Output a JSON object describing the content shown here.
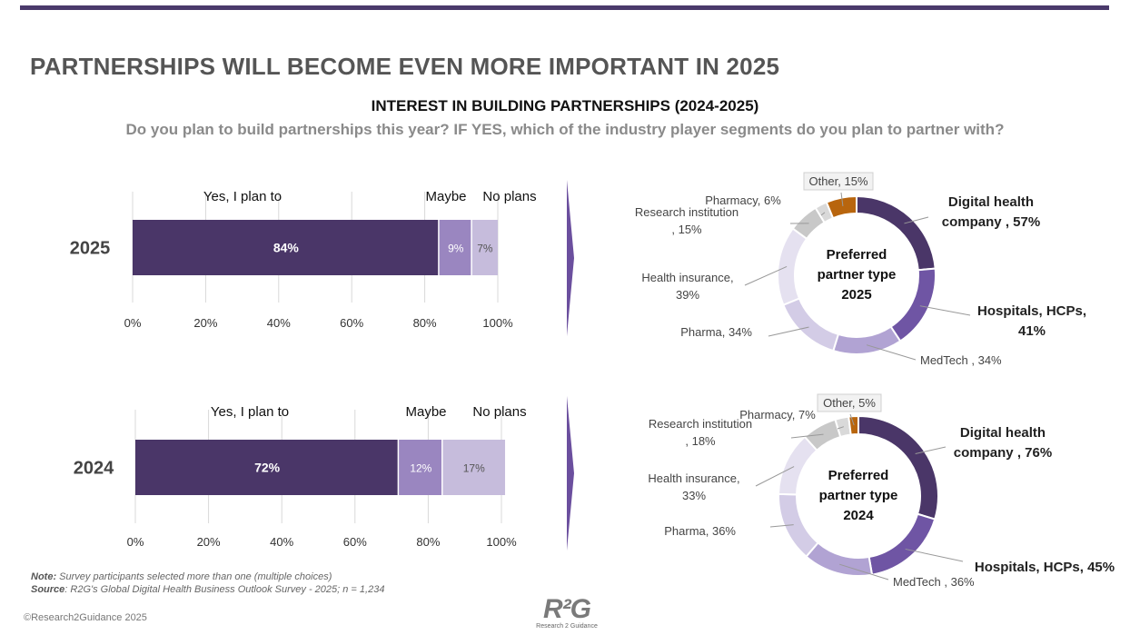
{
  "page": {
    "title": "PARTNERSHIPS WILL BECOME EVEN MORE IMPORTANT IN 2025",
    "subtitle": "INTEREST IN BUILDING PARTNERSHIPS (2024-2025)",
    "question": "Do you plan to build partnerships this year?  IF YES, which of the industry player segments do you plan to partner with?",
    "note_label": "Note:",
    "note_text": " Survey participants selected more than one (multiple choices)",
    "source_label": "Source",
    "source_text": ":  R2G's Global Digital Health Business Outlook Survey - 2025; n = 1,234",
    "copyright": "©Research2Guidance 2025",
    "logo_mark": "R²G",
    "logo_tag": "Research 2 Guidance"
  },
  "colors": {
    "yes": "#4a3668",
    "maybe": "#9a86c0",
    "no": "#c6bcdc",
    "digital": "#4a3668",
    "hospitals": "#6f55a4",
    "medtech": "#b1a3d3",
    "pharma": "#d3cce6",
    "insurance": "#e5e1f0",
    "research": "#c8c8c8",
    "pharmacy": "#d9d9d9",
    "other": "#b8650d",
    "axis_text": "#333333",
    "year_text": "#444444"
  },
  "chart_data": [
    {
      "type": "bar",
      "orientation": "horizontal-stacked",
      "category": "2025",
      "series": [
        {
          "name": "Yes, I plan to",
          "value": 84,
          "label": "84%"
        },
        {
          "name": "Maybe",
          "value": 9,
          "label": "9%"
        },
        {
          "name": "No plans",
          "value": 7,
          "label": "7%"
        }
      ],
      "xlim": [
        0,
        100
      ],
      "ticks": [
        "0%",
        "20%",
        "40%",
        "60%",
        "80%",
        "100%"
      ]
    },
    {
      "type": "pie",
      "variant": "donut",
      "center_label": [
        "Preferred",
        "partner type",
        "2025"
      ],
      "slices": [
        {
          "label": [
            "Digital health",
            "company , 57%"
          ],
          "value": 57,
          "bold": true
        },
        {
          "label": [
            "Hospitals, HCPs,",
            "41%"
          ],
          "value": 41,
          "bold": true
        },
        {
          "label": [
            "MedTech , 34%"
          ],
          "value": 34,
          "bold": false
        },
        {
          "label": [
            "Pharma, 34%"
          ],
          "value": 34,
          "bold": false
        },
        {
          "label": [
            "Health insurance,",
            "39%"
          ],
          "value": 39,
          "bold": false
        },
        {
          "label": [
            "Research institution",
            ", 15%"
          ],
          "value": 15,
          "bold": false
        },
        {
          "label": [
            "Pharmacy, 6%"
          ],
          "value": 6,
          "bold": false
        },
        {
          "label": [
            "Other, 15%"
          ],
          "value": 15,
          "bold": false,
          "boxed": true
        }
      ]
    },
    {
      "type": "bar",
      "orientation": "horizontal-stacked",
      "category": "2024",
      "series": [
        {
          "name": "Yes, I plan to",
          "value": 72,
          "label": "72%"
        },
        {
          "name": "Maybe",
          "value": 12,
          "label": "12%"
        },
        {
          "name": "No plans",
          "value": 17,
          "label": "17%"
        }
      ],
      "xlim": [
        0,
        100
      ],
      "ticks": [
        "0%",
        "20%",
        "40%",
        "60%",
        "80%",
        "100%"
      ]
    },
    {
      "type": "pie",
      "variant": "donut",
      "center_label": [
        "Preferred",
        "partner type",
        "2024"
      ],
      "slices": [
        {
          "label": [
            "Digital health",
            "company , 76%"
          ],
          "value": 76,
          "bold": true
        },
        {
          "label": [
            "Hospitals, HCPs, 45%"
          ],
          "value": 45,
          "bold": true
        },
        {
          "label": [
            "MedTech , 36%"
          ],
          "value": 36,
          "bold": false
        },
        {
          "label": [
            "Pharma, 36%"
          ],
          "value": 36,
          "bold": false
        },
        {
          "label": [
            "Health insurance,",
            "33%"
          ],
          "value": 33,
          "bold": false
        },
        {
          "label": [
            "Research institution",
            ", 18%"
          ],
          "value": 18,
          "bold": false
        },
        {
          "label": [
            "Pharmacy, 7%"
          ],
          "value": 7,
          "bold": false
        },
        {
          "label": [
            "Other, 5%"
          ],
          "value": 5,
          "bold": false,
          "boxed": true
        }
      ]
    }
  ]
}
